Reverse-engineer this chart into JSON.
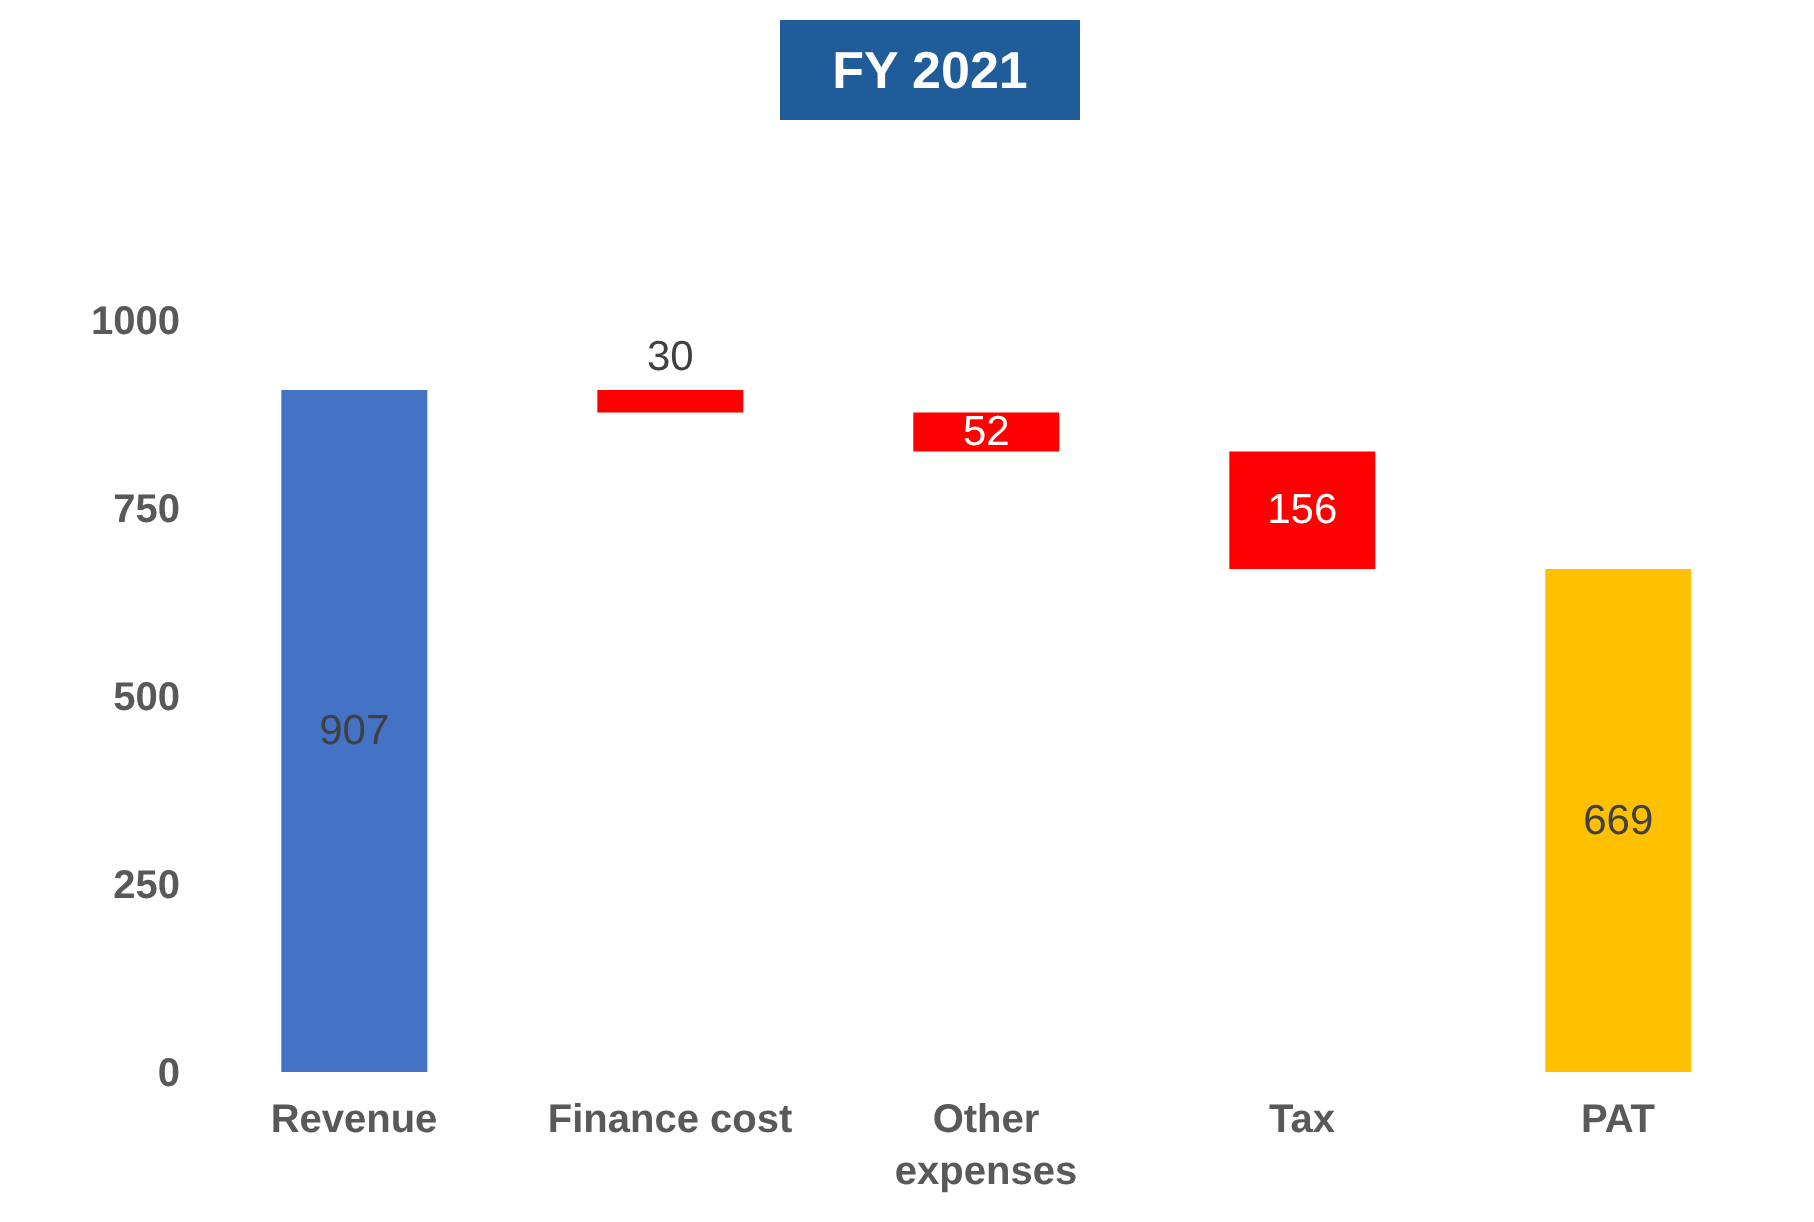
{
  "chart_data": {
    "type": "bar",
    "title": "FY 2021",
    "categories": [
      "Revenue",
      "Finance cost",
      "Other expenses",
      "Tax",
      "PAT"
    ],
    "values": [
      907,
      30,
      52,
      156,
      669
    ],
    "base": [
      0,
      877,
      825,
      669,
      0
    ],
    "colors": [
      "#4472c4",
      "#ff0000",
      "#ff0000",
      "#ff0000",
      "#ffc000"
    ],
    "ylim": [
      0,
      1000
    ],
    "yticks": [
      0,
      250,
      500,
      750,
      1000
    ],
    "grid": false,
    "legend": false,
    "data_labels": true
  }
}
